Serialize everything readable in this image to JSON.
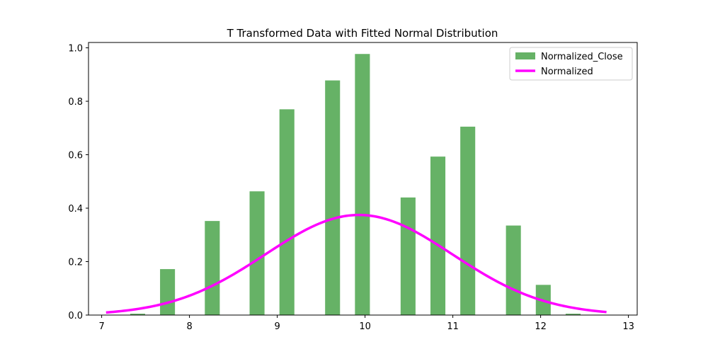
{
  "chart_data": {
    "type": "bar",
    "title": "T Transformed Data with Fitted Normal Distribution",
    "xlabel": "",
    "ylabel": "",
    "xlim": [
      6.85,
      13.1
    ],
    "ylim": [
      0,
      1.02
    ],
    "xticks": [
      "7",
      "8",
      "9",
      "10",
      "11",
      "12",
      "13"
    ],
    "yticks": [
      "0.0",
      "0.2",
      "0.4",
      "0.6",
      "0.8",
      "1.0"
    ],
    "grid": false,
    "legend_position": "upper right",
    "series": [
      {
        "name": "Normalized_Close",
        "kind": "bar",
        "color": "#66b266",
        "bar_width": 0.17,
        "x": [
          7.41,
          7.75,
          8.26,
          8.77,
          9.11,
          9.63,
          9.97,
          10.49,
          10.83,
          11.17,
          11.69,
          12.03,
          12.37
        ],
        "values": [
          0.005,
          0.172,
          0.352,
          0.463,
          0.77,
          0.878,
          0.977,
          0.44,
          0.593,
          0.705,
          0.335,
          0.113,
          0.005
        ]
      },
      {
        "name": "Normalized",
        "kind": "line",
        "color": "#ff00ff",
        "mean": 9.93,
        "std": 1.065,
        "x_range": [
          7.05,
          12.75
        ]
      }
    ]
  }
}
